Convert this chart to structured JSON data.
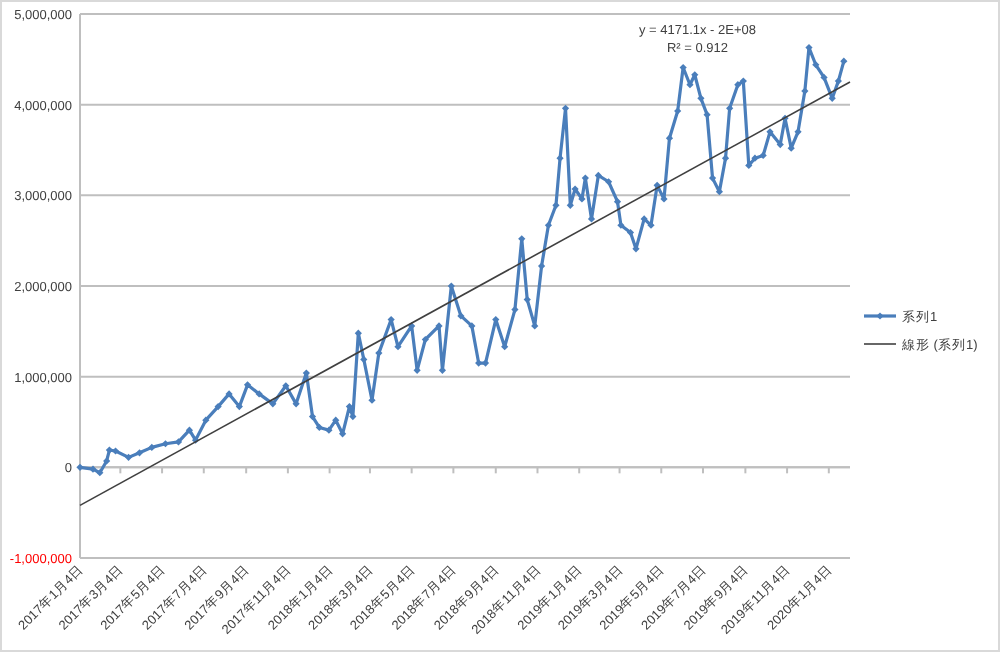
{
  "chart_data": {
    "type": "line",
    "xlim": [
      "2017-01-04",
      "2020-02-04"
    ],
    "ylim": [
      -1000000,
      5000000
    ],
    "xticks": [
      {
        "value": "2017-01-04",
        "label": "2017年1月4日"
      },
      {
        "value": "2017-03-04",
        "label": "2017年3月4日"
      },
      {
        "value": "2017-05-04",
        "label": "2017年5月4日"
      },
      {
        "value": "2017-07-04",
        "label": "2017年7月4日"
      },
      {
        "value": "2017-09-04",
        "label": "2017年9月4日"
      },
      {
        "value": "2017-11-04",
        "label": "2017年11月4日"
      },
      {
        "value": "2018-01-04",
        "label": "2018年1月4日"
      },
      {
        "value": "2018-03-04",
        "label": "2018年3月4日"
      },
      {
        "value": "2018-05-04",
        "label": "2018年5月4日"
      },
      {
        "value": "2018-07-04",
        "label": "2018年7月4日"
      },
      {
        "value": "2018-09-04",
        "label": "2018年9月4日"
      },
      {
        "value": "2018-11-04",
        "label": "2018年11月4日"
      },
      {
        "value": "2019-01-04",
        "label": "2019年1月4日"
      },
      {
        "value": "2019-03-04",
        "label": "2019年3月4日"
      },
      {
        "value": "2019-05-04",
        "label": "2019年5月4日"
      },
      {
        "value": "2019-07-04",
        "label": "2019年7月4日"
      },
      {
        "value": "2019-09-04",
        "label": "2019年9月4日"
      },
      {
        "value": "2019-11-04",
        "label": "2019年11月4日"
      },
      {
        "value": "2020-01-04",
        "label": "2020年1月4日"
      }
    ],
    "yticks": [
      {
        "value": -1000000,
        "label": "-1,000,000"
      },
      {
        "value": 0,
        "label": "0"
      },
      {
        "value": 1000000,
        "label": "1,000,000"
      },
      {
        "value": 2000000,
        "label": "2,000,000"
      },
      {
        "value": 3000000,
        "label": "3,000,000"
      },
      {
        "value": 4000000,
        "label": "4,000,000"
      },
      {
        "value": 5000000,
        "label": "5,000,000"
      }
    ],
    "grid": "y",
    "legend": "right",
    "marker": "diamond",
    "line_style": "solid",
    "annotations": [
      "y = 4171.1x - 2E+08",
      "R² = 0.912"
    ],
    "series": [
      {
        "name": "系列1",
        "color": "#4a7ebb",
        "x": [
          "2017-01-04",
          "2017-01-23",
          "2017-02-02",
          "2017-02-12",
          "2017-02-16",
          "2017-02-25",
          "2017-03-16",
          "2017-04-01",
          "2017-04-19",
          "2017-05-09",
          "2017-05-28",
          "2017-06-13",
          "2017-06-22",
          "2017-07-07",
          "2017-07-25",
          "2017-08-10",
          "2017-08-25",
          "2017-09-06",
          "2017-09-23",
          "2017-10-13",
          "2017-11-01",
          "2017-11-16",
          "2017-12-01",
          "2017-12-10",
          "2017-12-20",
          "2018-01-03",
          "2018-01-13",
          "2018-01-23",
          "2018-02-02",
          "2018-02-07",
          "2018-02-15",
          "2018-02-23",
          "2018-03-07",
          "2018-03-17",
          "2018-04-04",
          "2018-04-14",
          "2018-05-04",
          "2018-05-12",
          "2018-05-24",
          "2018-06-13",
          "2018-06-18",
          "2018-07-01",
          "2018-07-15",
          "2018-07-31",
          "2018-08-10",
          "2018-08-20",
          "2018-09-04",
          "2018-09-17",
          "2018-10-02",
          "2018-10-12",
          "2018-10-20",
          "2018-10-31",
          "2018-11-10",
          "2018-11-20",
          "2018-12-01",
          "2018-12-07",
          "2018-12-15",
          "2018-12-22",
          "2018-12-29",
          "2019-01-08",
          "2019-01-13",
          "2019-01-22",
          "2019-02-01",
          "2019-02-16",
          "2019-03-01",
          "2019-03-06",
          "2019-03-20",
          "2019-03-28",
          "2019-04-09",
          "2019-04-19",
          "2019-04-28",
          "2019-05-08",
          "2019-05-16",
          "2019-05-28",
          "2019-06-05",
          "2019-06-15",
          "2019-06-22",
          "2019-07-01",
          "2019-07-10",
          "2019-07-18",
          "2019-07-28",
          "2019-08-06",
          "2019-08-12",
          "2019-08-24",
          "2019-09-01",
          "2019-09-09",
          "2019-09-18",
          "2019-09-30",
          "2019-10-10",
          "2019-10-25",
          "2019-11-01",
          "2019-11-10",
          "2019-11-20",
          "2019-11-30",
          "2019-12-06",
          "2019-12-16",
          "2019-12-28",
          "2020-01-09",
          "2020-01-18",
          "2020-01-26"
        ],
        "values": [
          0,
          -20000,
          -60000,
          70000,
          190000,
          180000,
          110000,
          160000,
          220000,
          260000,
          280000,
          410000,
          300000,
          520000,
          670000,
          810000,
          670000,
          910000,
          810000,
          700000,
          900000,
          700000,
          1040000,
          560000,
          440000,
          410000,
          520000,
          370000,
          670000,
          560000,
          1480000,
          1190000,
          740000,
          1260000,
          1630000,
          1330000,
          1560000,
          1070000,
          1410000,
          1560000,
          1070000,
          2000000,
          1670000,
          1560000,
          1150000,
          1150000,
          1630000,
          1330000,
          1740000,
          2520000,
          1850000,
          1560000,
          2220000,
          2670000,
          2890000,
          3410000,
          3960000,
          2890000,
          3070000,
          2960000,
          3190000,
          2740000,
          3220000,
          3150000,
          2930000,
          2670000,
          2590000,
          2410000,
          2740000,
          2670000,
          3110000,
          2960000,
          3630000,
          3930000,
          4410000,
          4220000,
          4330000,
          4070000,
          3890000,
          3190000,
          3040000,
          3410000,
          3960000,
          4220000,
          4260000,
          3330000,
          3410000,
          3440000,
          3700000,
          3560000,
          3850000,
          3520000,
          3700000,
          4150000,
          4630000,
          4440000,
          4300000,
          4070000,
          4260000,
          4480000
        ]
      },
      {
        "name": "線形 (系列1)",
        "type": "line",
        "color": "#404040",
        "marker": "none",
        "x": [
          "2017-01-04",
          "2020-02-04"
        ],
        "values": [
          -420000,
          4250000
        ]
      }
    ]
  }
}
